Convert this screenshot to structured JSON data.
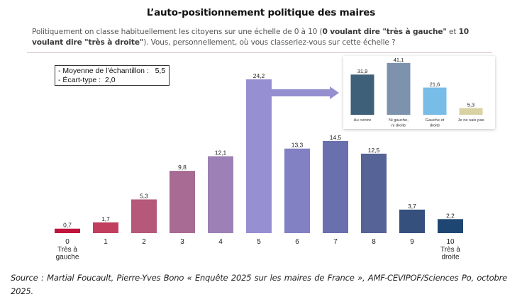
{
  "title": "L’auto-positionnement politique des maires",
  "question": {
    "part1": "Politiquement on classe habituellement les citoyens sur une échelle de 0 à 10 (",
    "bold1": "0 voulant dire \"très à gauche\"",
    "part2": " et ",
    "bold2": "10 voulant dire \"très à droite\"",
    "part3": "). Vous, personnellement, où vous classeriez-vous sur cette échelle ?"
  },
  "stats": {
    "mean_label": "- Moyenne de l’échantillon :",
    "mean_value": "5,5",
    "sd_label": "- Écart-type :",
    "sd_value": "2,0"
  },
  "source": "Source : Martial Foucault, Pierre-Yves Bono « Enquête 2025 sur les maires de France », AMF-CEVIPOF/Sciences Po, octobre 2025.",
  "chart_data": [
    {
      "type": "bar",
      "title": "L’auto-positionnement politique des maires",
      "xlabel": "",
      "ylabel": "",
      "ylim": [
        0,
        25
      ],
      "grid": false,
      "categories": [
        "0",
        "1",
        "2",
        "3",
        "4",
        "5",
        "6",
        "7",
        "8",
        "9",
        "10"
      ],
      "category_sublabels": {
        "0": [
          "Très à",
          "gauche"
        ],
        "10": [
          "Très à",
          "droite"
        ]
      },
      "values": [
        0.7,
        1.7,
        5.3,
        9.8,
        12.1,
        24.2,
        13.3,
        14.5,
        12.5,
        3.7,
        2.2
      ],
      "value_labels": [
        "0,7",
        "1,7",
        "5,3",
        "9,8",
        "12,1",
        "24,2",
        "13,3",
        "14,5",
        "12,5",
        "3,7",
        "2,2"
      ],
      "colors": [
        "#c0143c",
        "#c23e5e",
        "#b5587a",
        "#a76b94",
        "#9c80b6",
        "#968fd2",
        "#8281c4",
        "#6a6fae",
        "#566396",
        "#36507e",
        "#1f4673"
      ]
    },
    {
      "type": "bar",
      "title": "Détail de la position 5",
      "ylim": [
        0,
        45
      ],
      "grid": false,
      "categories": [
        "Au centre",
        "Ni gauche, ni droite",
        "Gauche et droite",
        "Je ne sais pas"
      ],
      "category_lines": [
        [
          "Au centre"
        ],
        [
          "Ni gauche,",
          "ni droite"
        ],
        [
          "Gauche et",
          "droite"
        ],
        [
          "Je ne sais pas"
        ]
      ],
      "values": [
        31.9,
        41.1,
        21.6,
        5.3
      ],
      "value_labels": [
        "31,9",
        "41,1",
        "21,6",
        "5,3"
      ],
      "colors": [
        "#3e6079",
        "#7d93ad",
        "#77bde8",
        "#d9d2a3"
      ]
    }
  ],
  "arrow_color": "#958fd0"
}
